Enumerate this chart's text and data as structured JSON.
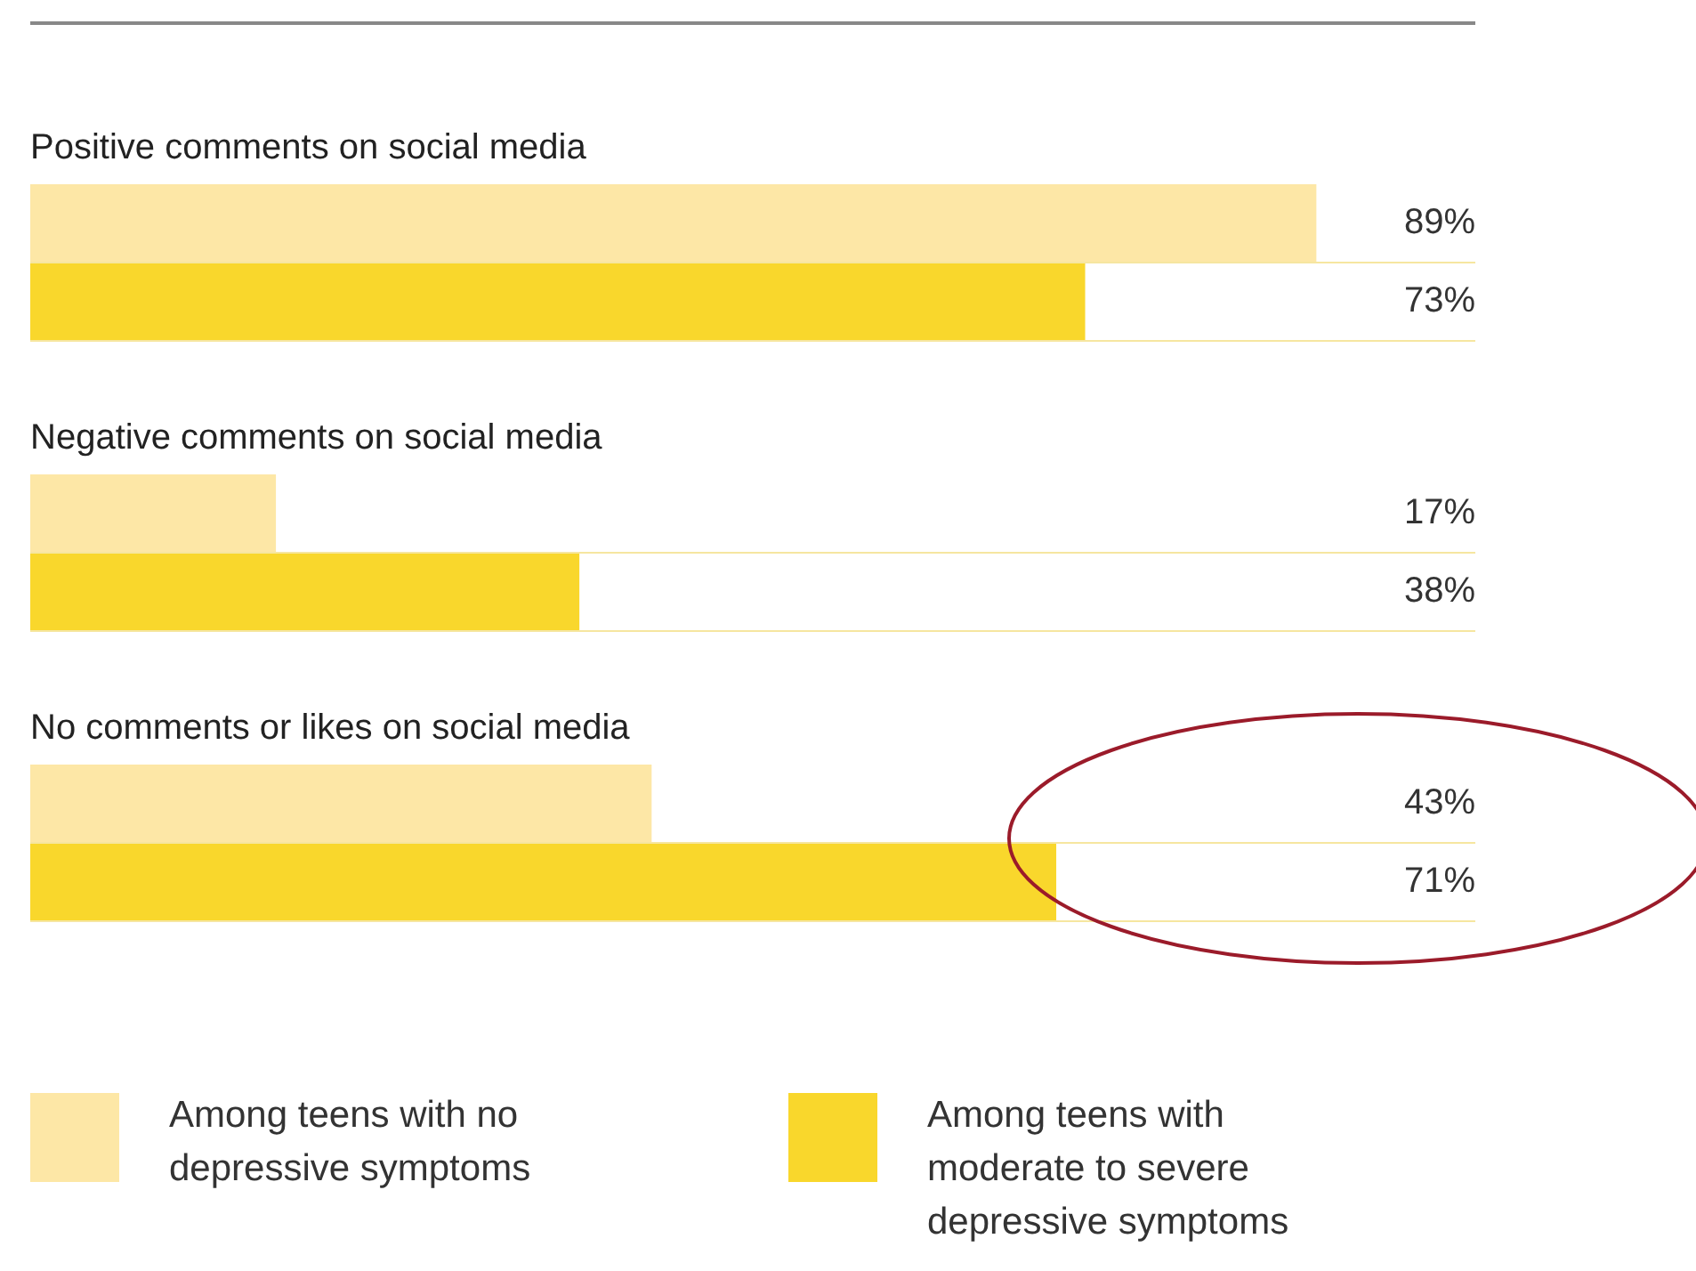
{
  "chart_data": {
    "type": "bar",
    "orientation": "horizontal",
    "categories": [
      "Positive comments on social media",
      "Negative comments on social media",
      "No comments or likes on social media"
    ],
    "series": [
      {
        "name": "Among teens with no depressive symptoms",
        "color": "#fde7a6",
        "values": [
          89,
          17,
          43
        ],
        "value_labels": [
          "89%",
          "17%",
          "43%"
        ]
      },
      {
        "name": "Among teens with moderate to severe depressive symptoms",
        "color": "#f9d72c",
        "values": [
          73,
          38,
          71
        ],
        "value_labels": [
          "73%",
          "38%",
          "71%"
        ]
      }
    ],
    "xlim": [
      0,
      100
    ],
    "legend": "bottom",
    "grid": "y"
  }
}
